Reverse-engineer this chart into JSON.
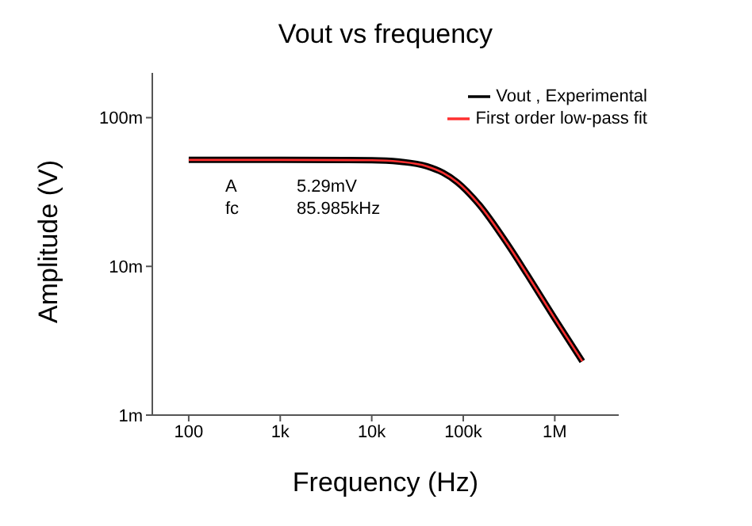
{
  "chart_data": {
    "type": "line",
    "title": "Vout vs frequency",
    "xlabel": "Frequency (Hz)",
    "ylabel": "Amplitude (V)",
    "x": [
      100,
      1000,
      10000,
      20000,
      40000,
      60000,
      86000,
      150000,
      300000,
      500000,
      1000000,
      2000000
    ],
    "series": [
      {
        "name": "Vout , Experimental",
        "color": "#000000",
        "values": [
          52,
          52,
          51.7,
          50.6,
          47.1,
          42.6,
          36.8,
          25.9,
          14.3,
          8.8,
          4.46,
          2.3
        ]
      },
      {
        "name": "First  order low-pass fit",
        "color": "#ff3030",
        "values": [
          52,
          52,
          51.7,
          50.6,
          47.1,
          42.6,
          36.8,
          25.9,
          14.3,
          8.8,
          4.46,
          2.3
        ]
      }
    ],
    "log": "xy",
    "xlim": [
      40,
      5000000
    ],
    "ylim": [
      1,
      200
    ],
    "xticks": [
      100,
      {
        "value": 1000,
        "label": "1k"
      },
      {
        "value": 10000,
        "label": "10k"
      },
      {
        "value": 100000,
        "label": "100k"
      },
      {
        "value": 1000000,
        "label": "1M"
      }
    ],
    "yticks": [
      {
        "value": 1,
        "label": "1m"
      },
      {
        "value": 10,
        "label": "10m"
      },
      {
        "value": 100,
        "label": "100m"
      }
    ],
    "grid": false,
    "legend": "top right",
    "marker": "none",
    "line_style": "solid",
    "annotations": [
      "A",
      "5.29mV",
      "fc",
      "85.985kHz"
    ]
  }
}
